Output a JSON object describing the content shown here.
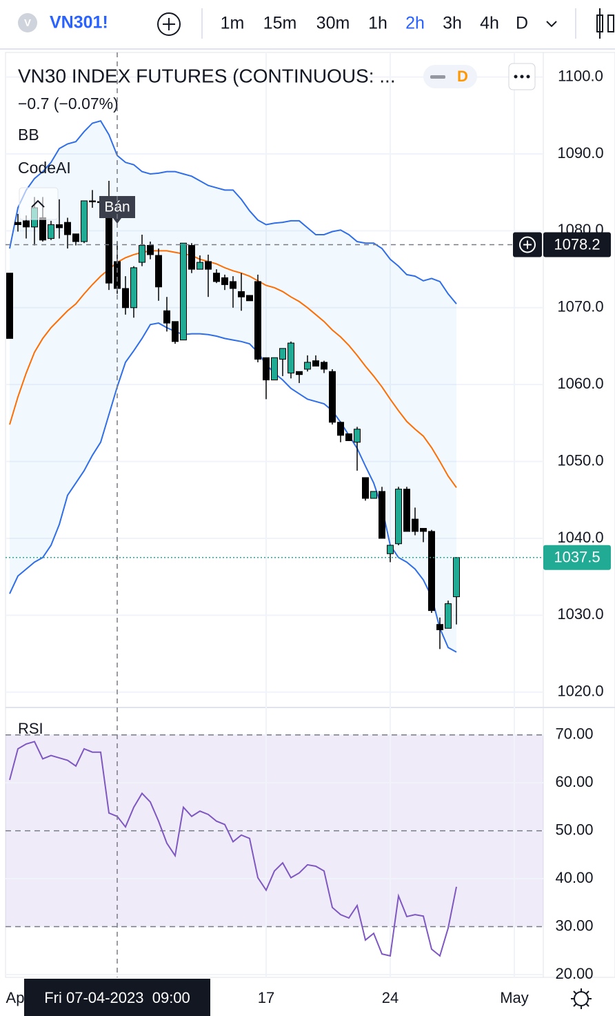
{
  "toolbar": {
    "symbol_icon": "V",
    "symbol": "VN301!",
    "intervals": [
      "1m",
      "15m",
      "30m",
      "1h",
      "2h",
      "3h",
      "4h",
      "D"
    ],
    "active_interval": "2h"
  },
  "chart_data": {
    "type": "candlestick",
    "title": "VN30 INDEX FUTURES (CONTINUOUS: ...",
    "change": "−0.7 (−0.07%)",
    "legend_badge": "D",
    "indicator_labels": [
      "BB",
      "CodeAI"
    ],
    "up_color": "#22ab94",
    "down_color": "#000000",
    "open": [
      1074.5,
      1081.1,
      1081.3,
      1080.5,
      1081.7,
      1079.0,
      1080.8,
      1081.1,
      1079.6,
      1078.6,
      1083.9,
      1083.8,
      1083.8,
      1076.0,
      1072.5,
      1070.0,
      1075.9,
      1078.1,
      1076.8,
      1069.6,
      1068.2,
      1065.8,
      1078.1,
      1075.0,
      1076.0,
      1074.5,
      1073.9,
      1073.4,
      1072.1,
      1071.6,
      1073.4,
      1063.5,
      1060.6,
      1063.3,
      1061.5,
      1061.7,
      1062.0,
      1063.1,
      1062.9,
      1061.7,
      1055.1,
      1053.6,
      1052.5,
      1047.9,
      1045.2,
      1046.1,
      1038.0,
      1039.3,
      1046.4,
      1042.5,
      1041.3,
      1040.9,
      1028.8,
      1028.3,
      1032.4
    ],
    "high": [
      1074.5,
      1082.2,
      1082.0,
      1084.4,
      1084.4,
      1081.3,
      1084.1,
      1081.7,
      1079.6,
      1083.9,
      1085.3,
      1084.1,
      1086.5,
      1078.6,
      1074.1,
      1075.4,
      1079.5,
      1078.6,
      1077.7,
      1071.4,
      1068.2,
      1078.4,
      1078.4,
      1076.8,
      1076.9,
      1075.0,
      1074.3,
      1074.1,
      1074.5,
      1071.6,
      1074.3,
      1063.5,
      1063.5,
      1064.7,
      1065.6,
      1061.7,
      1063.8,
      1063.8,
      1063.1,
      1062.0,
      1055.2,
      1053.6,
      1054.5,
      1047.9,
      1046.1,
      1046.7,
      1039.1,
      1046.7,
      1046.7,
      1044.0,
      1041.3,
      1041.1,
      1029.7,
      1031.9,
      1037.5
    ],
    "low": [
      1066.0,
      1079.9,
      1079.0,
      1078.1,
      1078.6,
      1078.8,
      1079.0,
      1077.7,
      1078.1,
      1078.4,
      1083.0,
      1083.4,
      1072.3,
      1071.8,
      1069.1,
      1068.7,
      1075.4,
      1076.3,
      1070.9,
      1066.9,
      1065.3,
      1065.8,
      1074.5,
      1075.0,
      1071.4,
      1073.2,
      1072.3,
      1070.0,
      1069.6,
      1070.9,
      1062.9,
      1058.1,
      1060.6,
      1061.1,
      1060.8,
      1060.2,
      1061.7,
      1062.4,
      1061.5,
      1054.8,
      1052.5,
      1052.7,
      1048.8,
      1044.9,
      1045.2,
      1040.0,
      1036.9,
      1039.1,
      1040.9,
      1040.4,
      1039.5,
      1030.3,
      1025.6,
      1028.3,
      1028.8
    ],
    "close": [
      1066.0,
      1080.8,
      1080.5,
      1083.0,
      1078.8,
      1080.8,
      1080.4,
      1079.5,
      1078.6,
      1083.9,
      1083.8,
      1083.7,
      1073.2,
      1072.5,
      1070.0,
      1075.2,
      1078.1,
      1076.9,
      1072.7,
      1068.0,
      1065.6,
      1078.4,
      1075.0,
      1075.9,
      1075.0,
      1073.4,
      1073.0,
      1072.5,
      1071.4,
      1070.9,
      1063.3,
      1060.6,
      1063.5,
      1064.7,
      1065.4,
      1061.3,
      1062.9,
      1062.4,
      1062.0,
      1055.1,
      1053.4,
      1052.7,
      1054.2,
      1045.2,
      1046.1,
      1040.0,
      1039.1,
      1046.4,
      1040.9,
      1040.9,
      1040.9,
      1030.6,
      1028.1,
      1031.5,
      1037.5
    ],
    "bollinger": {
      "upper_color": "#2f6ee8",
      "middle_color": "#ff6d00",
      "fill": "#2196f3",
      "upper": [
        1077.7,
        1083.0,
        1085.3,
        1086.8,
        1087.7,
        1088.9,
        1090.7,
        1091.3,
        1091.6,
        1092.9,
        1094.0,
        1094.3,
        1092.5,
        1089.8,
        1088.9,
        1088.6,
        1087.7,
        1087.4,
        1087.5,
        1087.7,
        1087.7,
        1087.4,
        1087.1,
        1086.5,
        1085.9,
        1085.6,
        1085.3,
        1085.3,
        1084.1,
        1082.6,
        1081.4,
        1080.8,
        1081.0,
        1081.1,
        1081.3,
        1081.3,
        1080.4,
        1079.5,
        1079.5,
        1079.9,
        1080.1,
        1079.5,
        1078.6,
        1078.4,
        1078.4,
        1077.7,
        1076.3,
        1075.4,
        1074.3,
        1074.1,
        1073.5,
        1073.8,
        1073.4,
        1071.8,
        1070.5
      ],
      "middle": [
        1054.8,
        1058.4,
        1061.5,
        1064.2,
        1066.0,
        1067.4,
        1068.5,
        1069.6,
        1070.5,
        1071.8,
        1073.0,
        1074.1,
        1075.0,
        1075.9,
        1076.5,
        1076.9,
        1077.2,
        1077.4,
        1077.4,
        1077.4,
        1077.2,
        1077.0,
        1076.8,
        1076.3,
        1076.0,
        1075.7,
        1075.2,
        1074.8,
        1074.5,
        1074.1,
        1073.5,
        1072.9,
        1072.6,
        1072.1,
        1071.4,
        1070.8,
        1070.0,
        1069.1,
        1068.2,
        1067.1,
        1066.2,
        1065.1,
        1063.8,
        1062.4,
        1061.1,
        1059.7,
        1058.1,
        1056.6,
        1055.2,
        1054.2,
        1053.3,
        1051.8,
        1050.0,
        1048.1,
        1046.6
      ],
      "lower": [
        1032.8,
        1035.1,
        1036.0,
        1036.9,
        1037.5,
        1039.1,
        1041.8,
        1045.6,
        1047.2,
        1048.8,
        1050.8,
        1052.5,
        1056.1,
        1059.7,
        1062.9,
        1064.4,
        1066.0,
        1067.8,
        1068.0,
        1067.4,
        1066.9,
        1066.5,
        1066.6,
        1066.6,
        1066.5,
        1066.3,
        1066.0,
        1065.8,
        1065.6,
        1065.3,
        1064.2,
        1062.6,
        1061.5,
        1060.6,
        1059.5,
        1058.8,
        1058.1,
        1057.8,
        1057.5,
        1056.6,
        1055.1,
        1053.4,
        1051.7,
        1049.4,
        1047.2,
        1044.0,
        1039.1,
        1037.5,
        1036.9,
        1036.0,
        1034.6,
        1032.4,
        1028.3,
        1025.8,
        1025.2
      ]
    },
    "markers": [
      {
        "index": 13,
        "label": "Bán"
      }
    ],
    "ylim": [
      1018,
      1103.2
    ],
    "yticks": [
      {
        "value": 1020,
        "label": "1020.0"
      },
      {
        "value": 1030,
        "label": "1030.0"
      },
      {
        "value": 1040,
        "label": "1040.0"
      },
      {
        "value": 1050,
        "label": "1050.0"
      },
      {
        "value": 1060,
        "label": "1060.0"
      },
      {
        "value": 1070,
        "label": "1070.0"
      },
      {
        "value": 1080,
        "label": "1080.0"
      },
      {
        "value": 1090,
        "label": "1090.0"
      },
      {
        "value": 1100,
        "label": "1100.0"
      }
    ],
    "xlim": [
      -0.5,
      64.5
    ],
    "xticks": [
      {
        "value": 0.5,
        "label": "Ap"
      },
      {
        "value": 31,
        "label": "17"
      },
      {
        "value": 46,
        "label": "24"
      },
      {
        "value": 61,
        "label": "May"
      }
    ],
    "last_price": 1037.5,
    "crosshair": {
      "x": 13,
      "y": 1078.2,
      "x_label": "Fri 07-04-2023  09:00"
    },
    "grid": true,
    "rsi": {
      "label": "RSI",
      "color": "#7e57c2",
      "values": [
        60.6,
        67.1,
        68.1,
        68.6,
        65.0,
        65.7,
        65.2,
        64.7,
        63.5,
        67.1,
        66.4,
        66.4,
        53.7,
        53.0,
        50.8,
        54.9,
        57.8,
        56.0,
        52.0,
        47.4,
        44.8,
        54.9,
        53.0,
        54.1,
        53.4,
        52.0,
        51.3,
        47.7,
        49.1,
        48.4,
        40.2,
        37.6,
        41.6,
        43.3,
        40.2,
        41.2,
        42.9,
        42.6,
        41.6,
        34.0,
        32.5,
        31.8,
        34.4,
        27.2,
        28.6,
        24.3,
        23.9,
        36.4,
        32.1,
        32.5,
        32.2,
        25.3,
        23.9,
        29.7,
        38.3
      ],
      "ylim": [
        17.4,
        75.0
      ],
      "yticks": [
        {
          "value": 20,
          "label": "20.00"
        },
        {
          "value": 30,
          "label": "30.00"
        },
        {
          "value": 40,
          "label": "40.00"
        },
        {
          "value": 50,
          "label": "50.00"
        },
        {
          "value": 60,
          "label": "60.00"
        },
        {
          "value": 70,
          "label": "70.00"
        }
      ],
      "band": [
        30,
        70
      ],
      "levels": [
        70,
        50,
        30
      ]
    }
  }
}
